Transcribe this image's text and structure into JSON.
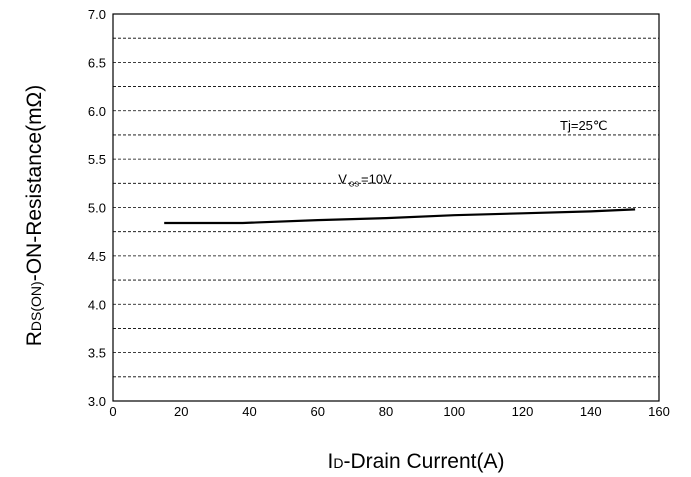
{
  "chart_data": {
    "type": "line",
    "xlabel": {
      "main": "I",
      "sub": "D",
      "rest": "-Drain Current(A)"
    },
    "ylabel": {
      "main": "R",
      "sub": "DS(ON)",
      "rest": "-ON-Resistance(mΩ)"
    },
    "xlim": [
      0,
      160
    ],
    "ylim": [
      3.0,
      7.0
    ],
    "x_ticks": [
      0,
      20,
      40,
      60,
      80,
      100,
      120,
      140,
      160
    ],
    "x_tick_labels": [
      "0",
      "20",
      "40",
      "60",
      "80",
      "100",
      "120",
      "140",
      "160"
    ],
    "y_ticks": [
      3.0,
      3.5,
      4.0,
      4.5,
      5.0,
      5.5,
      6.0,
      6.5,
      7.0
    ],
    "y_tick_labels": [
      "3.0",
      "3.5",
      "4.0",
      "4.5",
      "5.0",
      "5.5",
      "6.0",
      "6.5",
      "7.0"
    ],
    "y_grid": [
      3.25,
      3.5,
      3.75,
      4.0,
      4.25,
      4.5,
      4.75,
      5.0,
      5.25,
      5.5,
      5.75,
      6.0,
      6.25,
      6.5,
      6.75
    ],
    "grid": true,
    "series": [
      {
        "x": [
          15,
          38,
          60,
          80,
          100,
          120,
          140,
          153
        ],
        "y": [
          4.84,
          4.84,
          4.87,
          4.89,
          4.92,
          4.94,
          4.96,
          4.98
        ]
      }
    ],
    "annotations": [
      {
        "parts": [
          {
            "t": "V"
          },
          {
            "t": "GS",
            "sub": true
          },
          {
            "t": "=10V"
          }
        ],
        "x": 66,
        "y": 5.25
      },
      {
        "parts": [
          {
            "t": "Tj=25℃"
          }
        ],
        "x": 131,
        "y": 5.8
      }
    ]
  }
}
